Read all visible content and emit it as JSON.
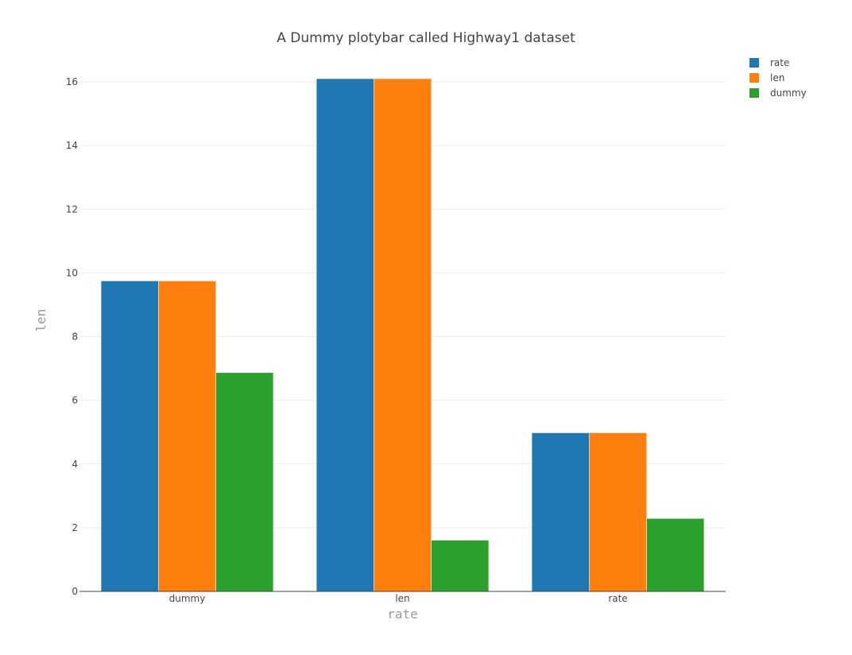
{
  "chart_data": {
    "type": "bar",
    "title": "A Dummy plotybar called Highway1 dataset",
    "xlabel": "rate",
    "ylabel": "len",
    "categories": [
      "dummy",
      "len",
      "rate"
    ],
    "series": [
      {
        "name": "rate",
        "color": "#1f77b4",
        "values": [
          9.75,
          16.1,
          4.98
        ]
      },
      {
        "name": "len",
        "color": "#ff7f0e",
        "values": [
          9.75,
          16.1,
          4.98
        ]
      },
      {
        "name": "dummy",
        "color": "#2ca02c",
        "values": [
          6.87,
          1.61,
          2.29
        ]
      }
    ],
    "ylim": [
      0,
      16.1
    ],
    "yticks": [
      0,
      2,
      4,
      6,
      8,
      10,
      12,
      14,
      16
    ],
    "grid": true,
    "legend_position": "top-right"
  }
}
